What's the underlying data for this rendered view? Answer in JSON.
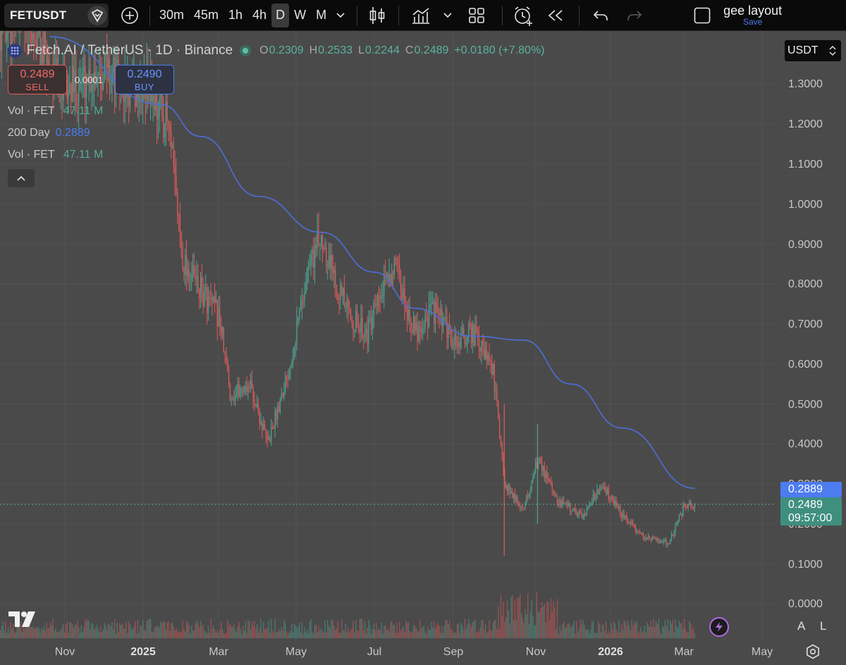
{
  "toolbar": {
    "symbol": "FETUSDT",
    "intervals": [
      "30m",
      "45m",
      "1h",
      "4h",
      "D",
      "W",
      "M"
    ],
    "active_interval": "D",
    "layout_title": "gee layout",
    "layout_save": "Save"
  },
  "legend": {
    "title": "Fetch.AI / TetherUS · 1D · Binance",
    "open_label": "O",
    "open": "0.2309",
    "high_label": "H",
    "high": "0.2533",
    "low_label": "L",
    "low": "0.2244",
    "close_label": "C",
    "close": "0.2489",
    "change": "+0.0180 (+7.80%)"
  },
  "trade": {
    "sell_price": "0.2489",
    "sell_label": "SELL",
    "spread": "0.0001",
    "buy_price": "0.2490",
    "buy_label": "BUY"
  },
  "indicators": [
    {
      "label": "Vol · FET",
      "value": "47.11 M"
    },
    {
      "label": "200 Day",
      "value": "0.2889"
    },
    {
      "label": "Vol · FET",
      "value": "47.11 M"
    }
  ],
  "currency": "USDT",
  "price_scale": [
    "1.3000",
    "1.2000",
    "1.1000",
    "1.0000",
    "0.9000",
    "0.8000",
    "0.7000",
    "0.6000",
    "0.5000",
    "0.4000",
    "0.3000",
    "0.2000",
    "0.1000",
    "0.0000"
  ],
  "time_axis": [
    "Nov",
    "2025",
    "Mar",
    "May",
    "Jul",
    "Sep",
    "Nov",
    "2026",
    "Mar",
    "May"
  ],
  "tags": {
    "ma_value": "0.2889",
    "last_price": "0.2489",
    "countdown": "09:57:00"
  },
  "scale_buttons": {
    "auto": "A",
    "log": "L"
  },
  "colors": {
    "up": "#4ea391",
    "down": "#e05a5a",
    "ma": "#4c6fd8",
    "background": "#4a4a4a",
    "toolbar": "#0a0a0a"
  },
  "chart_data": {
    "type": "candlestick",
    "symbol": "FETUSDT",
    "timeframe": "1D",
    "ylim": [
      0,
      1.35
    ],
    "x": [
      "2024-10",
      "2024-11",
      "2024-12",
      "2025-01",
      "2025-02",
      "2025-03",
      "2025-04",
      "2025-05",
      "2025-06",
      "2025-07",
      "2025-08",
      "2025-09",
      "2025-10",
      "2025-11",
      "2025-12",
      "2026-01",
      "2026-02",
      "2026-03"
    ],
    "close_path": [
      [
        "2024-10-01",
        1.45
      ],
      [
        "2024-11-01",
        1.28
      ],
      [
        "2024-12-01",
        1.35
      ],
      [
        "2024-12-20",
        1.28
      ],
      [
        "2025-01-05",
        1.3
      ],
      [
        "2025-01-20",
        1.2
      ],
      [
        "2025-02-01",
        0.86
      ],
      [
        "2025-02-15",
        0.78
      ],
      [
        "2025-03-01",
        0.72
      ],
      [
        "2025-03-10",
        0.52
      ],
      [
        "2025-03-25",
        0.55
      ],
      [
        "2025-04-08",
        0.4
      ],
      [
        "2025-04-25",
        0.6
      ],
      [
        "2025-05-10",
        0.85
      ],
      [
        "2025-05-20",
        0.92
      ],
      [
        "2025-06-10",
        0.72
      ],
      [
        "2025-06-25",
        0.68
      ],
      [
        "2025-07-15",
        0.85
      ],
      [
        "2025-08-01",
        0.68
      ],
      [
        "2025-08-15",
        0.74
      ],
      [
        "2025-09-01",
        0.65
      ],
      [
        "2025-09-15",
        0.68
      ],
      [
        "2025-10-01",
        0.58
      ],
      [
        "2025-10-10",
        0.3
      ],
      [
        "2025-10-25",
        0.24
      ],
      [
        "2025-11-05",
        0.36
      ],
      [
        "2025-11-20",
        0.26
      ],
      [
        "2025-12-10",
        0.22
      ],
      [
        "2025-12-25",
        0.3
      ],
      [
        "2026-01-10",
        0.22
      ],
      [
        "2026-01-25",
        0.17
      ],
      [
        "2026-02-15",
        0.15
      ],
      [
        "2026-02-28",
        0.25
      ],
      [
        "2026-03-08",
        0.2489
      ]
    ],
    "ma200_path": [
      [
        "2024-10-20",
        1.42
      ],
      [
        "2025-01-15",
        1.25
      ],
      [
        "2025-02-15",
        1.17
      ],
      [
        "2025-04-01",
        1.02
      ],
      [
        "2025-05-20",
        0.93
      ],
      [
        "2025-07-01",
        0.83
      ],
      [
        "2025-08-01",
        0.74
      ],
      [
        "2025-09-15",
        0.67
      ],
      [
        "2025-10-25",
        0.66
      ],
      [
        "2025-12-01",
        0.55
      ],
      [
        "2026-01-10",
        0.44
      ],
      [
        "2026-03-08",
        0.2889
      ]
    ],
    "last": 0.2489,
    "ma200": 0.2889
  }
}
